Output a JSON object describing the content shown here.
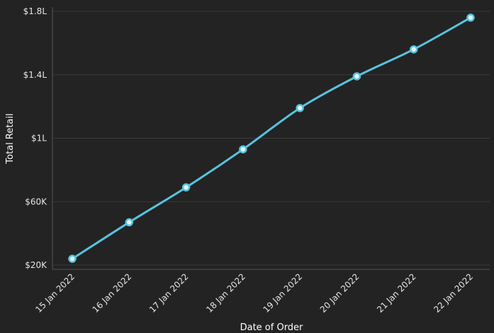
{
  "chart_data": {
    "type": "line",
    "xlabel": "Date of Order",
    "ylabel": "Total Retail",
    "x": [
      "15 Jan 2022",
      "16 Jan 2022",
      "17 Jan 2022",
      "18 Jan 2022",
      "19 Jan 2022",
      "20 Jan 2022",
      "21 Jan 2022",
      "22 Jan 2022"
    ],
    "series": [
      {
        "values": [
          24000,
          47000,
          69000,
          93000,
          119000,
          139000,
          156000,
          176000
        ]
      }
    ],
    "y_ticks": [
      {
        "value": 20000,
        "label": "$20K"
      },
      {
        "value": 60000,
        "label": "$60K"
      },
      {
        "value": 100000,
        "label": "$1L"
      },
      {
        "value": 140000,
        "label": "$1.4L"
      },
      {
        "value": 180000,
        "label": "$1.8L"
      }
    ],
    "ylim": [
      20000,
      180000
    ],
    "grid": true,
    "colors": {
      "line": "#56c4e0",
      "marker_fill": "#e6f7fb",
      "background": "#232323",
      "grid": "#3a3a3a"
    }
  }
}
